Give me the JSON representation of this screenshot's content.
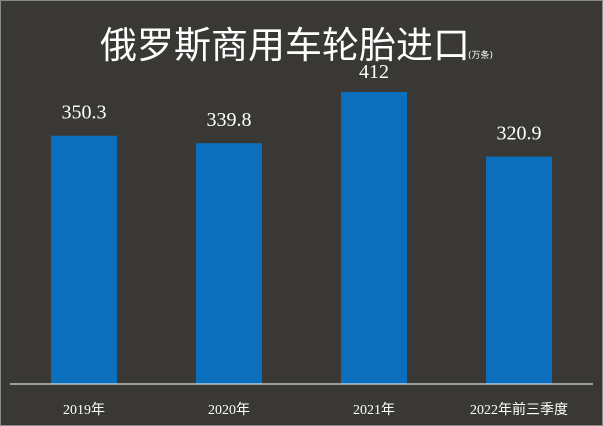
{
  "chart_data": {
    "type": "bar",
    "title": "俄罗斯商用车轮胎进口",
    "unit": "(万条)",
    "categories": [
      "2019年",
      "2020年",
      "2021年",
      "2022年前三季度"
    ],
    "values": [
      350.3,
      339.8,
      412,
      320.9
    ],
    "value_labels": [
      "350.3",
      "339.8",
      "412",
      "320.9"
    ],
    "xlabel": "",
    "ylabel": "",
    "ylim": [
      0,
      412
    ],
    "grid": false,
    "legend": "none",
    "colors": {
      "background": "#3a3835",
      "bar": "#0b6fbd",
      "text": "#ffffff",
      "axis": "#ffffff"
    }
  }
}
